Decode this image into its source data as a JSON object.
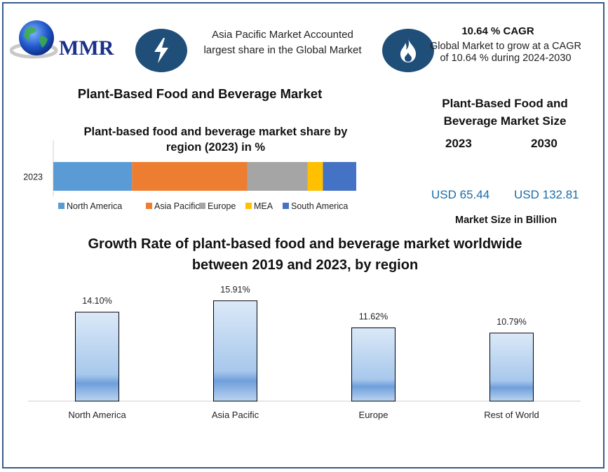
{
  "logo": {
    "text": "MMR"
  },
  "icons": {
    "left": "lightning-icon",
    "right": "flame-icon"
  },
  "highlight": {
    "text": "Asia Pacific Market Accounted largest share in the Global Market"
  },
  "cagr": {
    "title": "10.64 % CAGR",
    "text": "Global Market to grow at a CAGR of 10.64 % during 2024-2030"
  },
  "main_title": "Plant-Based Food and Beverage Market",
  "market_size": {
    "title": "Plant-Based Food and Beverage Market Size",
    "year1": "2023",
    "year2": "2030",
    "value1": "USD 65.44",
    "value2": "USD 132.81",
    "unit_label": "Market Size in Billion"
  },
  "colors": {
    "frame": "#3a5a8c",
    "icon_bg": "#1f4e79",
    "usd_text": "#1b6ca8",
    "north_america": "#5b9bd5",
    "asia_pacific": "#ed7d31",
    "europe": "#a5a5a5",
    "mea": "#ffc000",
    "south_america": "#4472c4"
  },
  "chart_data": [
    {
      "type": "bar",
      "orientation": "horizontal-stacked",
      "title": "Plant-based food and beverage market share by region (2023) in %",
      "categories": [
        "2023"
      ],
      "series": [
        {
          "name": "North America",
          "values": [
            26
          ]
        },
        {
          "name": "Asia Pacific",
          "values": [
            38
          ]
        },
        {
          "name": "Europe",
          "values": [
            20
          ]
        },
        {
          "name": "MEA",
          "values": [
            5
          ]
        },
        {
          "name": "South America",
          "values": [
            11
          ]
        }
      ],
      "xlim": [
        0,
        100
      ],
      "legend": "bottom",
      "grid": false
    },
    {
      "type": "bar",
      "title": "Growth Rate of plant-based food and beverage market worldwide between 2019 and 2023, by region",
      "categories": [
        "North America",
        "Asia Pacific",
        "Europe",
        "Rest of World"
      ],
      "values": [
        14.1,
        15.91,
        11.62,
        10.79
      ],
      "labels": [
        "14.10%",
        "15.91%",
        "11.62%",
        "10.79%"
      ],
      "ylim": [
        0,
        18
      ],
      "grid": false
    }
  ]
}
